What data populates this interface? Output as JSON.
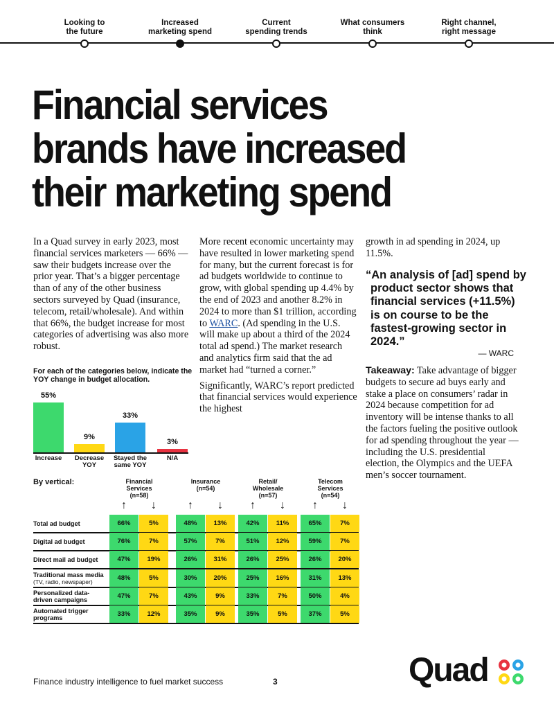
{
  "nav": {
    "items": [
      {
        "label": "Looking to the future",
        "l1": "Looking to",
        "l2": "the future"
      },
      {
        "label": "Increased marketing spend",
        "l1": "Increased",
        "l2": "marketing spend"
      },
      {
        "label": "Current spending trends",
        "l1": "Current",
        "l2": "spending trends"
      },
      {
        "label": "What consumers think",
        "l1": "What consumers",
        "l2": "think"
      },
      {
        "label": "Right channel, right message",
        "l1": "Right channel,",
        "l2": "right message"
      }
    ],
    "active_index": 1
  },
  "title": {
    "line1": "Financial services",
    "line2": "brands have increased",
    "line3": "their marketing spend"
  },
  "col1": {
    "para": "In a Quad survey in early 2023, most financial services marketers — 66% — saw their budgets increase over the prior year. That’s a bigger percentage than of any of the other business sectors surveyed by Quad (insurance, telecom, retail/wholesale). And within that 66%, the budget increase for most categories of advertising was also more robust."
  },
  "col2": {
    "p1_a": "More recent economic uncertainty may have resulted in lower marketing spend for many, but the current forecast is for ad budgets worldwide to continue to grow, with global spending up 4.4% by the end of 2023 and another 8.2% in 2024 to more than $1 trillion, according to ",
    "p1_link": "WARC",
    "p1_b": ". (Ad spending in the U.S. will make up about a third of the 2024 total ad spend.) The market research and analytics firm said that the ad market had “turned a corner.”",
    "p2": "Significantly, WARC’s report predicted that financial services would experience the highest"
  },
  "col3": {
    "p1": "growth in ad spending in 2024, up 11.5%.",
    "quote": "“An analysis of [ad] spend by product sector shows that financial services (+11.5%) is on course to be the fastest-growing sector in 2024.”",
    "attribution": "— WARC",
    "takeaway_label": "Takeaway:",
    "takeaway_text": " Take advantage of bigger budgets to secure ad buys early and stake a place on consumers’ radar in 2024 because competition for ad inventory will be intense thanks to all the factors fueling the positive outlook for ad spending throughout the year — including the U.S. presidential election, the Olympics and the UEFA men’s soccer tournament."
  },
  "chart_data": {
    "type": "bar",
    "title": "For each of the categories below, indicate the YOY change in budget allocation.",
    "categories": [
      "Increase",
      "Decrease YOY",
      "Stayed the same YOY",
      "N/A"
    ],
    "cat_lines": [
      [
        "Increase"
      ],
      [
        "Decrease",
        "YOY"
      ],
      [
        "Stayed the",
        "same YOY"
      ],
      [
        "N/A"
      ]
    ],
    "values": [
      55,
      9,
      33,
      3
    ],
    "value_labels": [
      "55%",
      "9%",
      "33%",
      "3%"
    ],
    "colors": [
      "#3dd96d",
      "#ffd814",
      "#2aa3e6",
      "#e83240"
    ],
    "ylim": [
      0,
      55
    ]
  },
  "table": {
    "heading": "By vertical:",
    "groups": [
      {
        "l1": "Financial",
        "l2": "Services",
        "l3": "(n=58)"
      },
      {
        "l1": "Insurance",
        "l2": "(n=54)",
        "l3": ""
      },
      {
        "l1": "Retail/",
        "l2": "Wholesale",
        "l3": "(n=57)"
      },
      {
        "l1": "Telecom",
        "l2": "Services",
        "l3": "(n=54)"
      }
    ],
    "up_arrow": "↑",
    "down_arrow": "↓",
    "rows": [
      {
        "label": "Total ad budget",
        "sub": "",
        "values": [
          "66%",
          "5%",
          "48%",
          "13%",
          "42%",
          "11%",
          "65%",
          "7%"
        ]
      },
      {
        "label": "Digital ad budget",
        "sub": "",
        "values": [
          "76%",
          "7%",
          "57%",
          "7%",
          "51%",
          "12%",
          "59%",
          "7%"
        ]
      },
      {
        "label": "Direct mail ad budget",
        "sub": "",
        "values": [
          "47%",
          "19%",
          "26%",
          "31%",
          "26%",
          "25%",
          "26%",
          "20%"
        ]
      },
      {
        "label": "Traditional mass media",
        "sub": "(TV, radio, newspaper)",
        "values": [
          "48%",
          "5%",
          "30%",
          "20%",
          "25%",
          "16%",
          "31%",
          "13%"
        ]
      },
      {
        "label": "Personalized data-driven campaigns",
        "sub": "",
        "values": [
          "47%",
          "7%",
          "43%",
          "9%",
          "33%",
          "7%",
          "50%",
          "4%"
        ]
      },
      {
        "label": "Automated trigger programs",
        "sub": "",
        "values": [
          "33%",
          "12%",
          "35%",
          "9%",
          "35%",
          "5%",
          "37%",
          "5%"
        ]
      }
    ]
  },
  "footer": {
    "text": "Finance industry intelligence to fuel market success",
    "page": "3",
    "brand": "Quad"
  },
  "colors": {
    "up": "#3dd96d",
    "down": "#ffd814",
    "link": "#1a4fa0"
  }
}
